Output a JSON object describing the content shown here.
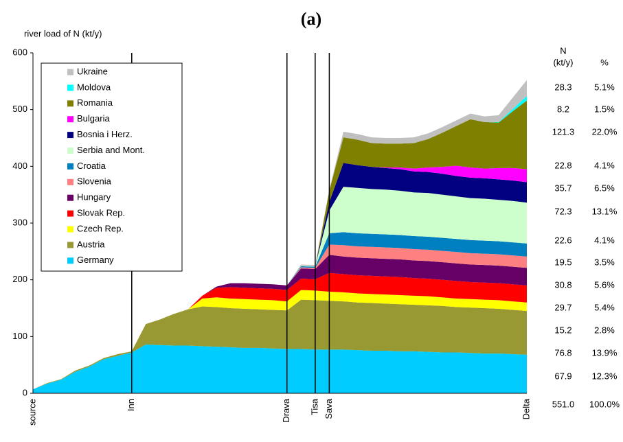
{
  "chart_data": {
    "type": "stacked_area",
    "title": "(a)",
    "ylabel": "river load of N (kt/y)",
    "ylim": [
      0,
      600
    ],
    "yticks": [
      0,
      100,
      200,
      300,
      400,
      500,
      600
    ],
    "categories": [
      "source",
      null,
      null,
      null,
      null,
      null,
      null,
      "Inn",
      null,
      null,
      null,
      null,
      null,
      null,
      null,
      null,
      null,
      null,
      "Drava",
      null,
      "Tisa",
      "Sava",
      null,
      null,
      null,
      null,
      null,
      null,
      null,
      null,
      null,
      null,
      null,
      null,
      null,
      "Delta"
    ],
    "series": [
      {
        "name": "Germany",
        "color": "#00ccff",
        "values": [
          7,
          17,
          24,
          38,
          47,
          60,
          66,
          72,
          86,
          85,
          84,
          84,
          83,
          82,
          81,
          80,
          80,
          79,
          78,
          78,
          77,
          77,
          77,
          76,
          75,
          75,
          74,
          74,
          73,
          72,
          72,
          71,
          70,
          70,
          69,
          68
        ]
      },
      {
        "name": "Austria",
        "color": "#999933",
        "values": [
          0,
          1,
          1,
          2,
          2,
          2,
          3,
          2,
          36,
          45,
          56,
          64,
          70,
          70,
          69,
          69,
          68,
          68,
          68,
          87,
          87,
          86,
          85,
          84,
          84,
          83,
          83,
          82,
          82,
          82,
          80,
          80,
          80,
          79,
          78,
          77
        ]
      },
      {
        "name": "Czech Rep.",
        "color": "#ffff00",
        "values": [
          0,
          0,
          0,
          0,
          0,
          0,
          0,
          0,
          0,
          0,
          0,
          0,
          14,
          17,
          17,
          17,
          17,
          17,
          16,
          17,
          17,
          16,
          16,
          16,
          16,
          16,
          16,
          16,
          16,
          15,
          15,
          15,
          15,
          15,
          15,
          15
        ]
      },
      {
        "name": "Slovak Rep.",
        "color": "#ff0000",
        "values": [
          0,
          0,
          0,
          0,
          0,
          0,
          0,
          0,
          0,
          0,
          0,
          0,
          5,
          17,
          20,
          20,
          20,
          20,
          20,
          20,
          20,
          33,
          32,
          32,
          32,
          32,
          32,
          31,
          31,
          31,
          31,
          30,
          30,
          30,
          30,
          30
        ]
      },
      {
        "name": "Hungary",
        "color": "#660066",
        "values": [
          0,
          0,
          0,
          0,
          0,
          0,
          0,
          0,
          0,
          0,
          0,
          0,
          0,
          2,
          7,
          8,
          8,
          8,
          8,
          18,
          18,
          32,
          31,
          31,
          31,
          31,
          31,
          31,
          31,
          31,
          31,
          31,
          31,
          31,
          31,
          31
        ]
      },
      {
        "name": "Slovenia",
        "color": "#ff8080",
        "values": [
          0,
          0,
          0,
          0,
          0,
          0,
          0,
          0,
          0,
          0,
          0,
          0,
          0,
          0,
          0,
          0,
          0,
          0,
          0,
          2,
          2,
          18,
          20,
          20,
          20,
          20,
          20,
          20,
          20,
          20,
          20,
          20,
          20,
          20,
          20,
          20
        ]
      },
      {
        "name": "Croatia",
        "color": "#0080c0",
        "values": [
          0,
          0,
          0,
          0,
          0,
          0,
          0,
          0,
          0,
          0,
          0,
          0,
          0,
          0,
          0,
          0,
          0,
          0,
          0,
          2,
          2,
          20,
          23,
          23,
          23,
          23,
          23,
          23,
          23,
          23,
          23,
          23,
          23,
          23,
          23,
          23
        ]
      },
      {
        "name": "Serbia and Mont.",
        "color": "#ccffcc",
        "values": [
          0,
          0,
          0,
          0,
          0,
          0,
          0,
          0,
          0,
          0,
          0,
          0,
          0,
          0,
          0,
          0,
          0,
          0,
          0,
          1,
          1,
          40,
          80,
          80,
          79,
          79,
          78,
          77,
          77,
          76,
          75,
          74,
          74,
          73,
          73,
          72
        ]
      },
      {
        "name": "Bosnia i Herz.",
        "color": "#000080",
        "values": [
          0,
          0,
          0,
          0,
          0,
          0,
          0,
          0,
          0,
          0,
          0,
          0,
          0,
          0,
          0,
          0,
          0,
          0,
          0,
          0,
          0,
          15,
          42,
          40,
          39,
          38,
          38,
          37,
          37,
          37,
          36,
          36,
          36,
          36,
          36,
          36
        ]
      },
      {
        "name": "Bulgaria",
        "color": "#ff00ff",
        "values": [
          0,
          0,
          0,
          0,
          0,
          0,
          0,
          0,
          0,
          0,
          0,
          0,
          0,
          0,
          0,
          0,
          0,
          0,
          0,
          0,
          0,
          0,
          0,
          0,
          0,
          1,
          3,
          5,
          8,
          12,
          18,
          18,
          17,
          20,
          22,
          23
        ]
      },
      {
        "name": "Romania",
        "color": "#808000",
        "values": [
          0,
          0,
          0,
          0,
          0,
          0,
          0,
          0,
          0,
          0,
          0,
          0,
          0,
          0,
          0,
          0,
          0,
          0,
          0,
          0,
          0,
          20,
          45,
          45,
          42,
          42,
          42,
          45,
          50,
          60,
          70,
          85,
          82,
          80,
          100,
          121
        ]
      },
      {
        "name": "Moldova",
        "color": "#00ffff",
        "values": [
          0,
          0,
          0,
          0,
          0,
          0,
          0,
          0,
          0,
          0,
          0,
          0,
          0,
          0,
          0,
          0,
          0,
          0,
          0,
          0,
          0,
          0,
          0,
          0,
          0,
          0,
          0,
          0,
          0,
          0,
          0,
          0,
          0,
          1,
          4,
          8
        ]
      },
      {
        "name": "Ukraine",
        "color": "#c0c0c0",
        "values": [
          0,
          0,
          0,
          0,
          0,
          0,
          0,
          0,
          0,
          0,
          0,
          0,
          0,
          0,
          0,
          0,
          0,
          0,
          0,
          2,
          2,
          2,
          10,
          10,
          10,
          10,
          10,
          10,
          10,
          10,
          10,
          10,
          10,
          12,
          20,
          28
        ]
      }
    ],
    "side_table": {
      "header_n": [
        "N",
        "(kt/y)"
      ],
      "header_pct": "%",
      "rows": [
        [
          "28.3",
          "5.1%"
        ],
        [
          "8.2",
          "1.5%"
        ],
        [
          "121.3",
          "22.0%"
        ],
        [
          "22.8",
          "4.1%"
        ],
        [
          "35.7",
          "6.5%"
        ],
        [
          "72.3",
          "13.1%"
        ],
        [
          "22.6",
          "4.1%"
        ],
        [
          "19.5",
          "3.5%"
        ],
        [
          "30.8",
          "5.6%"
        ],
        [
          "29.7",
          "5.4%"
        ],
        [
          "15.2",
          "2.8%"
        ],
        [
          "76.8",
          "13.9%"
        ],
        [
          "67.9",
          "12.3%"
        ],
        [
          "551.0",
          "100.0%"
        ]
      ]
    }
  }
}
